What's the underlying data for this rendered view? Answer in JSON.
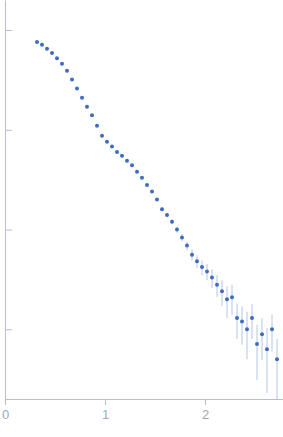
{
  "chart_data": {
    "type": "scatter",
    "log": "y",
    "tick_labels": "x",
    "color": "#3d6cc0",
    "marker": "circle",
    "xlim": [
      0,
      2.78
    ],
    "xticks": [
      0,
      1,
      2
    ],
    "ylim": [
      0.0002,
      2
    ],
    "yticks": [
      0.001,
      0.01,
      0.1,
      1
    ],
    "x": [
      0.32,
      0.37,
      0.42,
      0.47,
      0.52,
      0.57,
      0.62,
      0.67,
      0.72,
      0.77,
      0.82,
      0.87,
      0.92,
      0.97,
      1.02,
      1.07,
      1.12,
      1.17,
      1.22,
      1.27,
      1.32,
      1.37,
      1.42,
      1.47,
      1.52,
      1.57,
      1.62,
      1.67,
      1.72,
      1.77,
      1.82,
      1.87,
      1.92,
      1.97,
      2.02,
      2.07,
      2.12,
      2.17,
      2.22,
      2.27,
      2.32,
      2.37,
      2.42,
      2.47,
      2.52,
      2.57,
      2.62,
      2.67,
      2.72
    ],
    "values": [
      0.76,
      0.71,
      0.65,
      0.59,
      0.52,
      0.46,
      0.39,
      0.32,
      0.26,
      0.21,
      0.17,
      0.14,
      0.11,
      0.087,
      0.076,
      0.068,
      0.06,
      0.055,
      0.049,
      0.044,
      0.038,
      0.033,
      0.028,
      0.024,
      0.02,
      0.016,
      0.014,
      0.012,
      0.01,
      0.0083,
      0.0069,
      0.0056,
      0.0048,
      0.0042,
      0.0038,
      0.0033,
      0.0028,
      0.0024,
      0.002,
      0.0021,
      0.0013,
      0.0012,
      0.001,
      0.0013,
      0.00071,
      0.00089,
      0.00063,
      0.001,
      0.0005
    ],
    "errors": [
      0.01,
      0.009,
      0.008,
      0.007,
      0.006,
      0.005,
      0.004,
      0.0035,
      0.003,
      0.0025,
      0.002,
      0.0018,
      0.0016,
      0.0014,
      0.0013,
      0.0012,
      0.0011,
      0.001,
      0.001,
      0.0009,
      0.0009,
      0.0008,
      0.0008,
      0.0008,
      0.0007,
      0.0007,
      0.0007,
      0.0007,
      0.0007,
      0.0007,
      0.0007,
      0.0007,
      0.0007,
      0.0007,
      0.0007,
      0.0007,
      0.0007,
      0.0007,
      0.0007,
      0.0007,
      0.0005,
      0.0005,
      0.0005,
      0.0005,
      0.0004,
      0.0004,
      0.0004,
      0.0004,
      0.0003
    ]
  }
}
